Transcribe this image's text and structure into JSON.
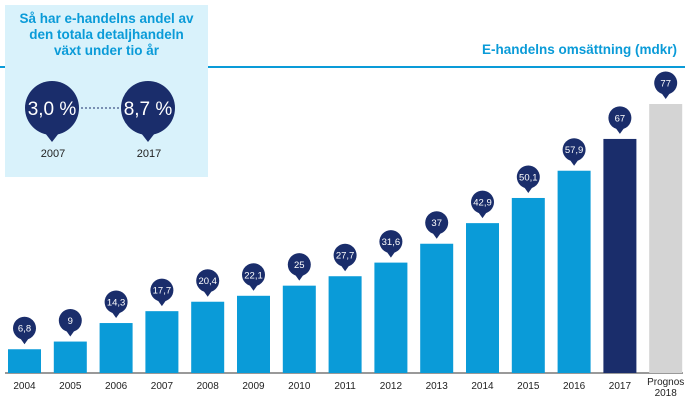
{
  "info": {
    "title_lines": [
      "Så har e-handelns andel av",
      "den totala detaljhandeln",
      "växt under tio år"
    ],
    "from": {
      "value": "3,0 %",
      "year": "2007"
    },
    "to": {
      "value": "8,7 %",
      "year": "2017"
    }
  },
  "chart_data": {
    "type": "bar",
    "title": "E-handelns omsättning (mdkr)",
    "xlabel": "",
    "ylabel": "",
    "ylim": [
      0,
      77
    ],
    "categories": [
      "2004",
      "2005",
      "2006",
      "2007",
      "2008",
      "2009",
      "2010",
      "2011",
      "2012",
      "2013",
      "2014",
      "2015",
      "2016",
      "2017",
      "Prognos\n2018"
    ],
    "values": [
      6.8,
      9,
      14.3,
      17.7,
      20.4,
      22.1,
      25,
      27.7,
      31.6,
      37,
      42.9,
      50.1,
      57.9,
      67,
      77
    ],
    "value_labels": [
      "6,8",
      "9",
      "14,3",
      "17,7",
      "20,4",
      "22,1",
      "25",
      "27,7",
      "31,6",
      "37",
      "42,9",
      "50,1",
      "57,9",
      "67",
      "77"
    ],
    "bar_kinds": [
      "actual",
      "actual",
      "actual",
      "actual",
      "actual",
      "actual",
      "actual",
      "actual",
      "actual",
      "actual",
      "actual",
      "actual",
      "actual",
      "highlight",
      "forecast"
    ],
    "grid": false,
    "legend": "none"
  },
  "colors": {
    "actual": "#0a9bd8",
    "highlight": "#1a2d6b",
    "forecast": "#d4d4d4",
    "marker": "#1a2d6b",
    "accent": "#0a9bd8",
    "info_bg": "#d9f2fb",
    "axis": "#333333"
  }
}
